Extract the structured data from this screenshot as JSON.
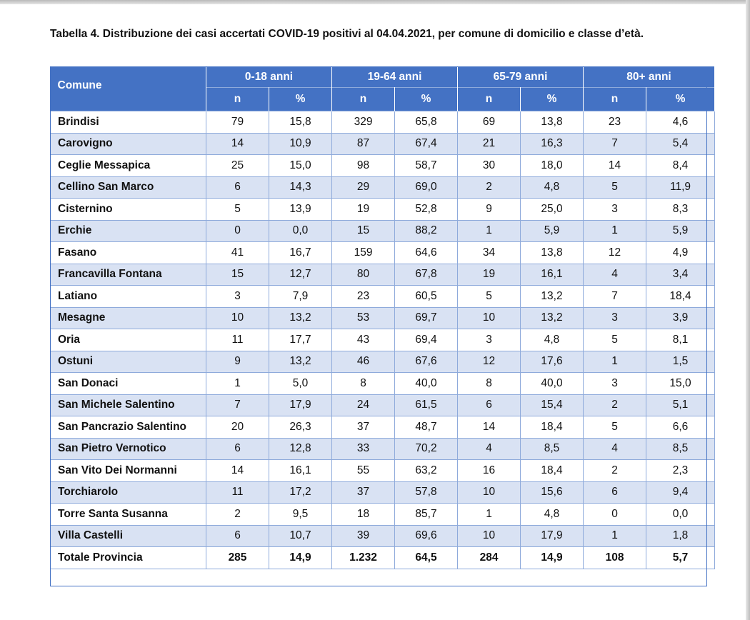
{
  "caption": "Tabella 4. Distribuzione dei casi accertati COVID-19 positivi al 04.04.2021, per comune di domicilio e classe d’età.",
  "header": {
    "comune": "Comune",
    "groups": [
      "0-18 anni",
      "19-64 anni",
      "65-79 anni",
      "80+ anni"
    ],
    "sub": [
      "n",
      "%",
      "n",
      "%",
      "n",
      "%",
      "n",
      "%"
    ]
  },
  "rows": [
    [
      "Brindisi",
      "79",
      "15,8",
      "329",
      "65,8",
      "69",
      "13,8",
      "23",
      "4,6"
    ],
    [
      "Carovigno",
      "14",
      "10,9",
      "87",
      "67,4",
      "21",
      "16,3",
      "7",
      "5,4"
    ],
    [
      "Ceglie Messapica",
      "25",
      "15,0",
      "98",
      "58,7",
      "30",
      "18,0",
      "14",
      "8,4"
    ],
    [
      "Cellino San Marco",
      "6",
      "14,3",
      "29",
      "69,0",
      "2",
      "4,8",
      "5",
      "11,9"
    ],
    [
      "Cisternino",
      "5",
      "13,9",
      "19",
      "52,8",
      "9",
      "25,0",
      "3",
      "8,3"
    ],
    [
      "Erchie",
      "0",
      "0,0",
      "15",
      "88,2",
      "1",
      "5,9",
      "1",
      "5,9"
    ],
    [
      "Fasano",
      "41",
      "16,7",
      "159",
      "64,6",
      "34",
      "13,8",
      "12",
      "4,9"
    ],
    [
      "Francavilla Fontana",
      "15",
      "12,7",
      "80",
      "67,8",
      "19",
      "16,1",
      "4",
      "3,4"
    ],
    [
      "Latiano",
      "3",
      "7,9",
      "23",
      "60,5",
      "5",
      "13,2",
      "7",
      "18,4"
    ],
    [
      "Mesagne",
      "10",
      "13,2",
      "53",
      "69,7",
      "10",
      "13,2",
      "3",
      "3,9"
    ],
    [
      "Oria",
      "11",
      "17,7",
      "43",
      "69,4",
      "3",
      "4,8",
      "5",
      "8,1"
    ],
    [
      "Ostuni",
      "9",
      "13,2",
      "46",
      "67,6",
      "12",
      "17,6",
      "1",
      "1,5"
    ],
    [
      "San Donaci",
      "1",
      "5,0",
      "8",
      "40,0",
      "8",
      "40,0",
      "3",
      "15,0"
    ],
    [
      "San Michele Salentino",
      "7",
      "17,9",
      "24",
      "61,5",
      "6",
      "15,4",
      "2",
      "5,1"
    ],
    [
      "San Pancrazio Salentino",
      "20",
      "26,3",
      "37",
      "48,7",
      "14",
      "18,4",
      "5",
      "6,6"
    ],
    [
      "San Pietro Vernotico",
      "6",
      "12,8",
      "33",
      "70,2",
      "4",
      "8,5",
      "4",
      "8,5"
    ],
    [
      "San Vito Dei Normanni",
      "14",
      "16,1",
      "55",
      "63,2",
      "16",
      "18,4",
      "2",
      "2,3"
    ],
    [
      "Torchiarolo",
      "11",
      "17,2",
      "37",
      "57,8",
      "10",
      "15,6",
      "6",
      "9,4"
    ],
    [
      "Torre Santa Susanna",
      "2",
      "9,5",
      "18",
      "85,7",
      "1",
      "4,8",
      "0",
      "0,0"
    ],
    [
      "Villa Castelli",
      "6",
      "10,7",
      "39",
      "69,6",
      "10",
      "17,9",
      "1",
      "1,8"
    ]
  ],
  "total": [
    "Totale Provincia",
    "285",
    "14,9",
    "1.232",
    "64,5",
    "284",
    "14,9",
    "108",
    "5,7"
  ],
  "colors": {
    "header_bg": "#4472c4",
    "band": "#d9e2f3",
    "grid": "#8eaadb"
  }
}
